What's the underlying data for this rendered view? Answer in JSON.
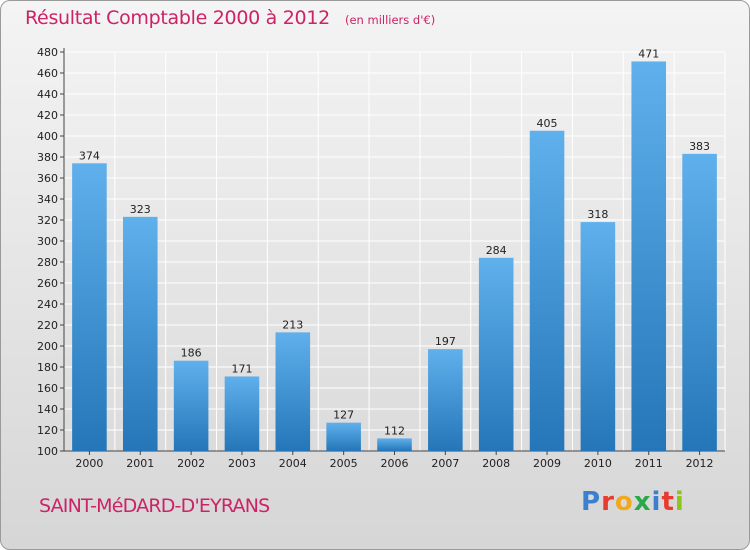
{
  "title": "Résultat Comptable 2000 à 2012",
  "subtitle": "(en milliers d'€)",
  "commune": "SAINT-MéDARD-D'EYRANS",
  "logo": {
    "text": "Proxiti",
    "letter_colors": [
      "#3a7fd0",
      "#e63b2e",
      "#f2a81d",
      "#2aa84a",
      "#3a7fd0",
      "#e63b2e",
      "#8fc31f"
    ]
  },
  "colors": {
    "bar_light": "#5fb0ec",
    "bar_dark": "#2576b8",
    "title": "#cc2266",
    "grid": "#ffffff"
  },
  "chart_data": {
    "type": "bar",
    "categories": [
      "2000",
      "2001",
      "2002",
      "2003",
      "2004",
      "2005",
      "2006",
      "2007",
      "2008",
      "2009",
      "2010",
      "2011",
      "2012"
    ],
    "values": [
      374,
      323,
      186,
      171,
      213,
      127,
      112,
      197,
      284,
      405,
      318,
      471,
      383
    ],
    "ylim": [
      100,
      480
    ],
    "yticks": [
      100,
      120,
      140,
      160,
      180,
      200,
      220,
      240,
      260,
      280,
      300,
      320,
      340,
      360,
      380,
      400,
      420,
      440,
      460,
      480
    ],
    "grid": true,
    "data_labels": true
  }
}
